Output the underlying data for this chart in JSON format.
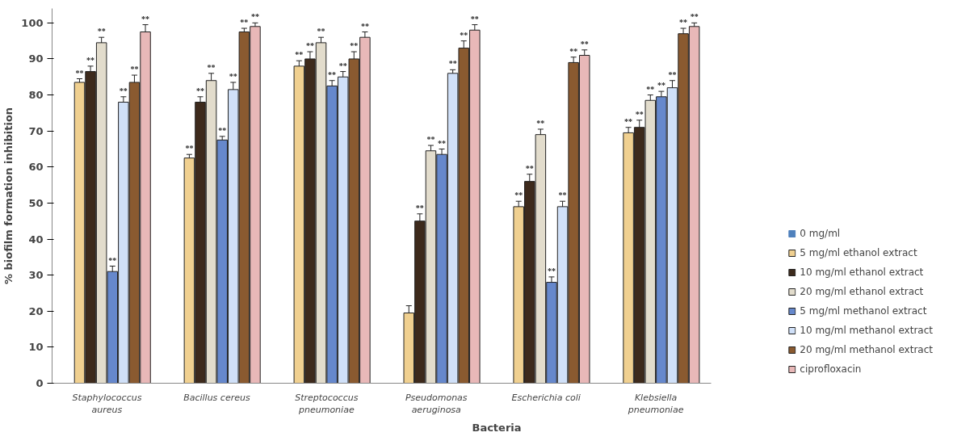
{
  "chart_data": {
    "type": "bar",
    "xlabel": "Bacteria",
    "ylabel": "% biofilm formation inhibition",
    "categories": [
      "Staphylococcus\naureus",
      "Bacillus cereus",
      "Streptococcus\npneumoniae",
      "Pseudomonas\naeruginosa",
      "Escherichia coli",
      "Klebsiella\npneumoniae"
    ],
    "ylim": [
      0,
      104
    ],
    "yticks": [
      0,
      10,
      20,
      30,
      40,
      50,
      60,
      70,
      80,
      90,
      100
    ],
    "grid": false,
    "legend": "right",
    "series": [
      {
        "name": "0 mg/ml",
        "color": "#4f81bd",
        "values": [
          0,
          0,
          0,
          0,
          0,
          0
        ]
      },
      {
        "name": "5 mg/ml ethanol extract",
        "color": "#f0d090",
        "values": [
          83.5,
          62.5,
          88,
          19.5,
          49,
          69.5
        ],
        "errors": [
          1,
          1,
          1.5,
          2,
          1.5,
          1.5
        ],
        "value_labels": [
          "**",
          "**",
          "**",
          null,
          "**",
          "**"
        ]
      },
      {
        "name": "10 mg/ml ethanol extract",
        "color": "#3d2a1c",
        "values": [
          86.5,
          78,
          90,
          45,
          56,
          71
        ],
        "errors": [
          1.5,
          1.5,
          2,
          2,
          2,
          2
        ],
        "value_labels": [
          "**",
          "**",
          "**",
          "**",
          "**",
          "**"
        ]
      },
      {
        "name": "20 mg/ml ethanol extract",
        "color": "#e2dccc",
        "values": [
          94.5,
          84,
          94.5,
          64.5,
          69,
          78.5
        ],
        "errors": [
          1.5,
          2,
          1.5,
          1.5,
          1.5,
          1.5
        ],
        "value_labels": [
          "**",
          "**",
          "**",
          "**",
          "**",
          "**"
        ]
      },
      {
        "name": "5 mg/ml methanol extract",
        "color": "#6688cc",
        "values": [
          31,
          67.5,
          82.5,
          63.5,
          28,
          79.5
        ],
        "errors": [
          1.5,
          1,
          1.5,
          1.5,
          1.5,
          1.5
        ],
        "value_labels": [
          "**",
          "**",
          "**",
          "**",
          "**",
          "**"
        ]
      },
      {
        "name": "10 mg/ml methanol extract",
        "color": "#d0e0f8",
        "values": [
          78,
          81.5,
          85,
          86,
          49,
          82
        ],
        "errors": [
          1.5,
          2,
          1.5,
          1,
          1.5,
          2
        ],
        "value_labels": [
          "**",
          "**",
          "**",
          "**",
          "**",
          "**"
        ]
      },
      {
        "name": "20 mg/ml methanol extract",
        "color": "#8a5a30",
        "values": [
          83.5,
          97.5,
          90,
          93,
          89,
          97
        ],
        "errors": [
          2,
          1,
          2,
          2,
          1.5,
          1.5
        ],
        "value_labels": [
          "**",
          "**",
          "**",
          "**",
          "**",
          "**"
        ]
      },
      {
        "name": "ciprofloxacin",
        "color": "#e8b8b8",
        "values": [
          97.5,
          99,
          96,
          98,
          91,
          99
        ],
        "errors": [
          2,
          1,
          1.5,
          1.5,
          1.5,
          1
        ],
        "value_labels": [
          "**",
          "**",
          "**",
          "**",
          "**",
          "**"
        ]
      }
    ]
  }
}
